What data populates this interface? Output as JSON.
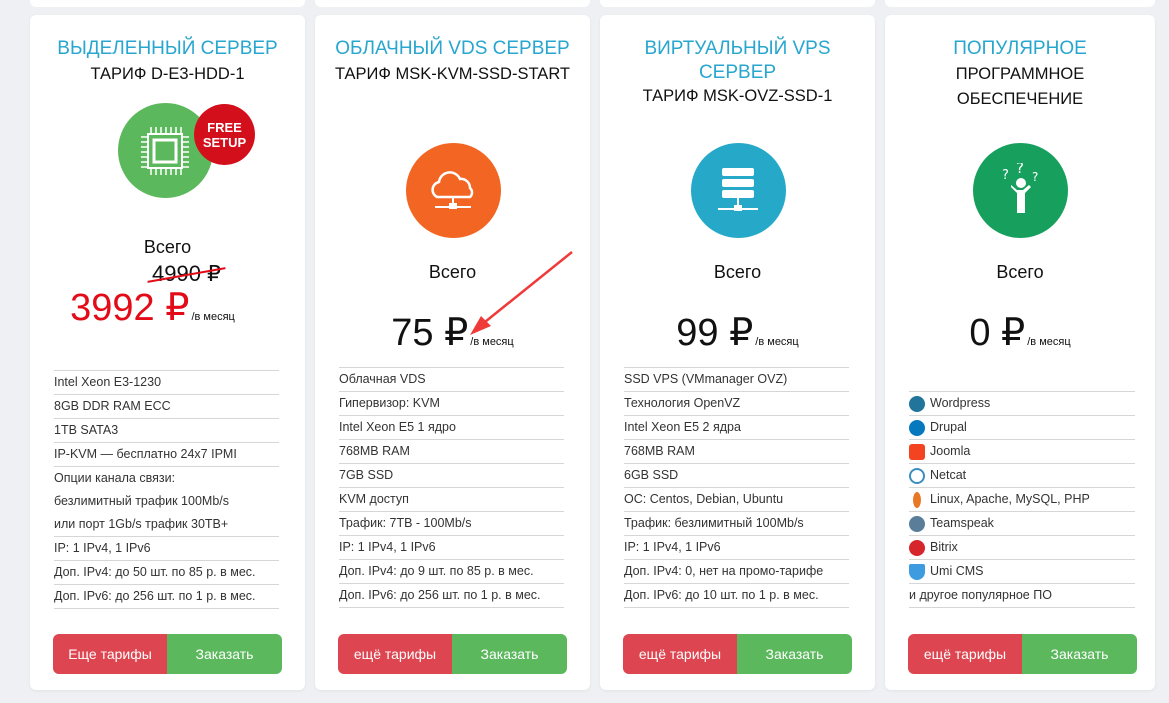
{
  "colors": {
    "title": "#27a6cf",
    "sale": "#e30b17",
    "order": "#5bb85d",
    "more": "#dd4550"
  },
  "cards": [
    {
      "title": "Выделенный сервер",
      "subtitle": "ТАРИФ D-E3-HDD-1",
      "icon": "cpu-chip-icon",
      "icon_color": "#5cb85c",
      "badge": "FREE SETUP",
      "total": "Всего",
      "old_price": "4990 ₽",
      "price": "3992 ₽",
      "per": "/в месяц",
      "features": [
        "Intel Xeon E3-1230",
        "8GB DDR RAM ECC",
        "1TB SATA3",
        "IP-KVM — бесплатно 24x7 IPMI",
        "Опции канала связи:",
        "безлимитный трафик 100Mb/s",
        "или порт 1Gb/s трафик 30TB+",
        "IP: 1 IPv4, 1 IPv6",
        "Доп. IPv4: до 50 шт. по 85 р. в мес.",
        "Доп. IPv6: до 256 шт. по 1 р. в мес."
      ],
      "more": "Еще тарифы",
      "order": "Заказать"
    },
    {
      "title": "Облачный VDS сервер",
      "subtitle": "ТАРИФ MSK-KVM-SSD-START",
      "icon": "cloud-icon",
      "icon_color": "#f26522",
      "total": "Всего",
      "price": "75 ₽",
      "per": "/в месяц",
      "features": [
        "Облачная VDS",
        "Гипервизор: KVM",
        "Intel Xeon E5 1 ядро",
        "768MB RAM",
        "7GB SSD",
        "KVM доступ",
        "Трафик: 7TB - 100Mb/s",
        "IP: 1 IPv4, 1 IPv6",
        "Доп. IPv4: до 9 шт. по 85 р. в мес.",
        "Доп. IPv6: до 256 шт. по 1 р. в мес."
      ],
      "more": "ещё тарифы",
      "order": "Заказать"
    },
    {
      "title": "Виртуальный VPS сервер",
      "subtitle": "ТАРИФ MSK-OVZ-SSD-1",
      "icon": "server-stack-icon",
      "icon_color": "#26a9c9",
      "total": "Всего",
      "price": "99 ₽",
      "per": "/в месяц",
      "features": [
        "SSD VPS (VMmanager OVZ)",
        "Технология OpenVZ",
        "Intel Xeon E5 2 ядра",
        "768MB RAM",
        "6GB SSD",
        "ОС: Centos, Debian, Ubuntu",
        "Трафик: безлимитный 100Mb/s",
        "IP: 1 IPv4, 1 IPv6",
        "Доп. IPv4: 0, нет на промо-тарифе",
        "Доп. IPv6: до 10 шт. по 1 р. в мес."
      ],
      "more": "ещё тарифы",
      "order": "Заказать"
    },
    {
      "title": "Популярное",
      "subtitle": "ПРОГРАММНОЕ ОБЕСПЕЧЕНИЕ",
      "icon": "question-person-icon",
      "icon_color": "#17a05d",
      "total": "Всего",
      "price": "0 ₽",
      "per": "/в месяц",
      "software": [
        {
          "label": "Wordpress",
          "icon": "wordpress-icon",
          "color": "#21759b"
        },
        {
          "label": "Drupal",
          "icon": "drupal-icon",
          "color": "#0678be"
        },
        {
          "label": "Joomla",
          "icon": "joomla-icon",
          "color": "#f44321"
        },
        {
          "label": "Netcat",
          "icon": "netcat-icon",
          "color": "#3a8fc0"
        },
        {
          "label": "Linux, Apache, MySQL, PHP",
          "icon": "apache-icon",
          "color": "#e97826"
        },
        {
          "label": "Teamspeak",
          "icon": "teamspeak-icon",
          "color": "#5a7d9a"
        },
        {
          "label": "Bitrix",
          "icon": "bitrix-icon",
          "color": "#d7252c"
        },
        {
          "label": "Umi CMS",
          "icon": "umi-icon",
          "color": "#3f9be0"
        }
      ],
      "footer": "и другое популярное ПО",
      "more": "ещё тарифы",
      "order": "Заказать"
    }
  ]
}
